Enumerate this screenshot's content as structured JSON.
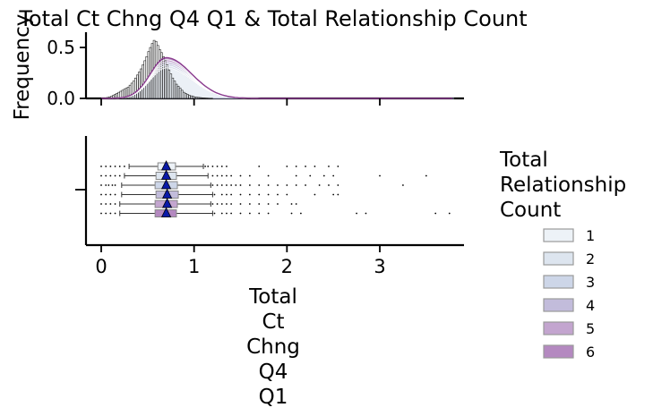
{
  "chart_data": {
    "type": "histogram-boxplot",
    "title": "Total Ct Chng Q4 Q1 & Total Relationship Count",
    "xlabel_lines": [
      "Total",
      "Ct",
      "Chng",
      "Q4",
      "Q1"
    ],
    "hist_ylabel": "Frequency",
    "x_ticks": [
      0,
      1,
      2,
      3
    ],
    "xlim": [
      -0.2,
      3.9
    ],
    "hist_ylim": [
      0,
      0.65
    ],
    "hist_yticks": [
      "0.0",
      "0.5"
    ],
    "legend": {
      "title_lines": [
        "Total",
        "Relationship",
        "Count"
      ],
      "position": "right",
      "entries": [
        {
          "label": "1",
          "color": "#edf2f7"
        },
        {
          "label": "2",
          "color": "#dde5ef"
        },
        {
          "label": "3",
          "color": "#cdd6e8"
        },
        {
          "label": "4",
          "color": "#c2bcdb"
        },
        {
          "label": "5",
          "color": "#c3a5cf"
        },
        {
          "label": "6",
          "color": "#b489c0"
        }
      ]
    },
    "density_peak_y": [
      0.3,
      0.32,
      0.34,
      0.36,
      0.38,
      0.4
    ],
    "histogram": {
      "bin_width": 0.02,
      "x_start": 0.0,
      "values": [
        0.002,
        0.004,
        0.006,
        0.01,
        0.015,
        0.02,
        0.03,
        0.04,
        0.05,
        0.06,
        0.07,
        0.08,
        0.09,
        0.1,
        0.11,
        0.13,
        0.15,
        0.17,
        0.2,
        0.23,
        0.26,
        0.29,
        0.33,
        0.37,
        0.41,
        0.46,
        0.5,
        0.54,
        0.57,
        0.56,
        0.52,
        0.48,
        0.45,
        0.41,
        0.37,
        0.33,
        0.28,
        0.24,
        0.2,
        0.17,
        0.14,
        0.12,
        0.1,
        0.08,
        0.06,
        0.05,
        0.04,
        0.03,
        0.025,
        0.02,
        0.015,
        0.012,
        0.01,
        0.008,
        0.006,
        0.005,
        0.004,
        0.003,
        0.002,
        0.002
      ]
    },
    "boxes": [
      {
        "group": "1",
        "q1": 0.61,
        "median": 0.7,
        "q3": 0.8,
        "mean": 0.7,
        "whisker_low": 0.3,
        "whisker_high": 1.1,
        "outliers": [
          0.0,
          0.05,
          0.1,
          0.15,
          0.2,
          0.25,
          1.12,
          1.15,
          1.2,
          1.25,
          1.3,
          1.35,
          1.7,
          2.0,
          2.1,
          2.2,
          2.3,
          2.45,
          2.55
        ]
      },
      {
        "group": "2",
        "q1": 0.59,
        "median": 0.69,
        "q3": 0.81,
        "mean": 0.7,
        "whisker_low": 0.25,
        "whisker_high": 1.15,
        "outliers": [
          0.0,
          0.05,
          0.1,
          0.15,
          0.2,
          1.2,
          1.25,
          1.3,
          1.35,
          1.4,
          1.5,
          1.6,
          1.8,
          2.1,
          2.25,
          2.4,
          2.5,
          3.0,
          3.5
        ]
      },
      {
        "group": "3",
        "q1": 0.58,
        "median": 0.7,
        "q3": 0.82,
        "mean": 0.7,
        "whisker_low": 0.22,
        "whisker_high": 1.18,
        "outliers": [
          0.0,
          0.05,
          0.08,
          0.12,
          0.15,
          1.2,
          1.25,
          1.3,
          1.35,
          1.4,
          1.45,
          1.5,
          1.6,
          1.7,
          1.8,
          1.9,
          2.0,
          2.1,
          2.2,
          2.35,
          2.45,
          2.55,
          3.25
        ]
      },
      {
        "group": "4",
        "q1": 0.59,
        "median": 0.7,
        "q3": 0.83,
        "mean": 0.71,
        "whisker_low": 0.22,
        "whisker_high": 1.2,
        "outliers": [
          0.0,
          0.05,
          0.1,
          0.15,
          1.22,
          1.3,
          1.35,
          1.4,
          1.5,
          1.6,
          1.7,
          1.8,
          1.9,
          2.0,
          2.3,
          2.5,
          2.55
        ]
      },
      {
        "group": "5",
        "q1": 0.58,
        "median": 0.7,
        "q3": 0.82,
        "mean": 0.71,
        "whisker_low": 0.2,
        "whisker_high": 1.18,
        "outliers": [
          0.0,
          0.05,
          0.1,
          0.15,
          1.2,
          1.25,
          1.3,
          1.35,
          1.4,
          1.5,
          1.6,
          1.7,
          1.8,
          1.9,
          2.05,
          2.1
        ]
      },
      {
        "group": "6",
        "q1": 0.58,
        "median": 0.69,
        "q3": 0.81,
        "mean": 0.7,
        "whisker_low": 0.2,
        "whisker_high": 1.2,
        "outliers": [
          0.0,
          0.05,
          0.1,
          0.15,
          1.22,
          1.3,
          1.35,
          1.4,
          1.5,
          1.6,
          1.7,
          1.8,
          2.05,
          2.15,
          2.75,
          2.85,
          3.6,
          3.75
        ]
      }
    ]
  }
}
